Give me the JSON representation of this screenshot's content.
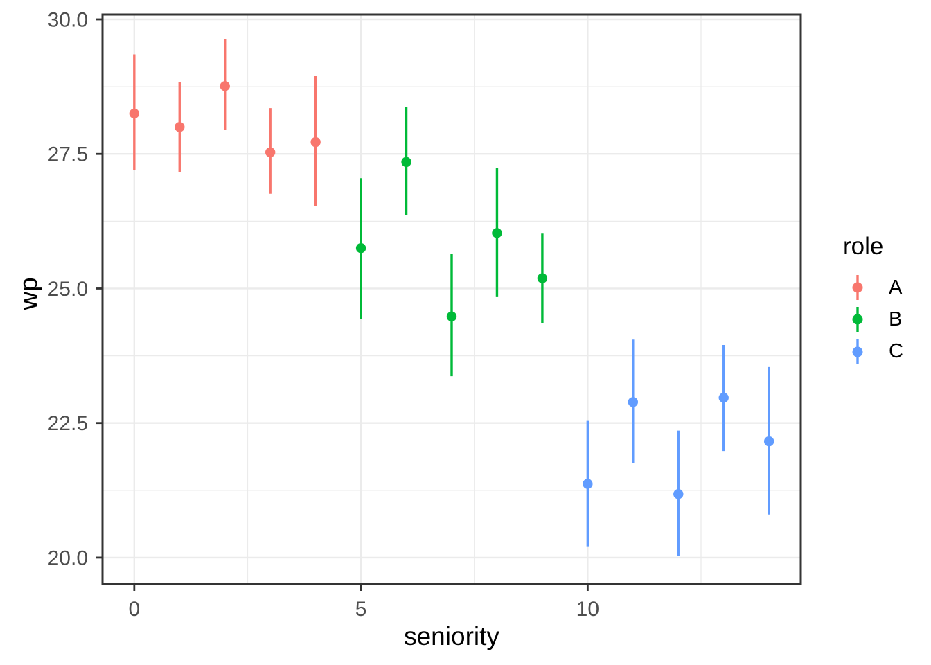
{
  "chart_data": {
    "type": "scatter",
    "subtype": "pointrange",
    "title": "",
    "xlabel": "seniority",
    "ylabel": "wp",
    "xlim": [
      -0.7,
      14.7
    ],
    "ylim": [
      19.51,
      30.09
    ],
    "grid": true,
    "x_ticks": {
      "values": [
        0,
        5,
        10
      ],
      "labels": [
        "0",
        "5",
        "10"
      ]
    },
    "y_ticks": {
      "values": [
        20.0,
        22.5,
        25.0,
        27.5,
        30.0
      ],
      "labels": [
        "20.0",
        "22.5",
        "25.0",
        "27.5",
        "30.0"
      ]
    },
    "x_minor": [
      2.5,
      7.5,
      12.5
    ],
    "y_minor": [
      21.25,
      23.75,
      26.25,
      28.75
    ],
    "legend": {
      "title": "role",
      "position": "right",
      "entries": [
        {
          "label": "A",
          "color": "#F8766D"
        },
        {
          "label": "B",
          "color": "#00BA38"
        },
        {
          "label": "C",
          "color": "#619CFF"
        }
      ]
    },
    "series": [
      {
        "name": "A",
        "color": "#F8766D",
        "points": [
          {
            "x": 0,
            "y": 28.25,
            "ymin": 27.2,
            "ymax": 29.35
          },
          {
            "x": 1,
            "y": 28.0,
            "ymin": 27.16,
            "ymax": 28.84
          },
          {
            "x": 2,
            "y": 28.76,
            "ymin": 27.94,
            "ymax": 29.64
          },
          {
            "x": 3,
            "y": 27.53,
            "ymin": 26.76,
            "ymax": 28.35
          },
          {
            "x": 4,
            "y": 27.72,
            "ymin": 26.53,
            "ymax": 28.95
          }
        ]
      },
      {
        "name": "B",
        "color": "#00BA38",
        "points": [
          {
            "x": 5,
            "y": 25.75,
            "ymin": 24.44,
            "ymax": 27.05
          },
          {
            "x": 6,
            "y": 27.35,
            "ymin": 26.36,
            "ymax": 28.37
          },
          {
            "x": 7,
            "y": 24.48,
            "ymin": 23.37,
            "ymax": 25.64
          },
          {
            "x": 8,
            "y": 26.03,
            "ymin": 24.84,
            "ymax": 27.24
          },
          {
            "x": 9,
            "y": 25.19,
            "ymin": 24.35,
            "ymax": 26.02
          }
        ]
      },
      {
        "name": "C",
        "color": "#619CFF",
        "points": [
          {
            "x": 10,
            "y": 21.37,
            "ymin": 20.21,
            "ymax": 22.54
          },
          {
            "x": 11,
            "y": 22.89,
            "ymin": 21.76,
            "ymax": 24.05
          },
          {
            "x": 12,
            "y": 21.18,
            "ymin": 20.03,
            "ymax": 22.36
          },
          {
            "x": 13,
            "y": 22.97,
            "ymin": 21.98,
            "ymax": 23.95
          },
          {
            "x": 14,
            "y": 22.16,
            "ymin": 20.8,
            "ymax": 23.54
          }
        ]
      }
    ],
    "style": {
      "background": "#FFFFFF",
      "panel_border": "#343434",
      "grid_color": "#EBEBEB",
      "tick_color": "#333333",
      "tick_label_color": "#4D4D4D"
    }
  }
}
